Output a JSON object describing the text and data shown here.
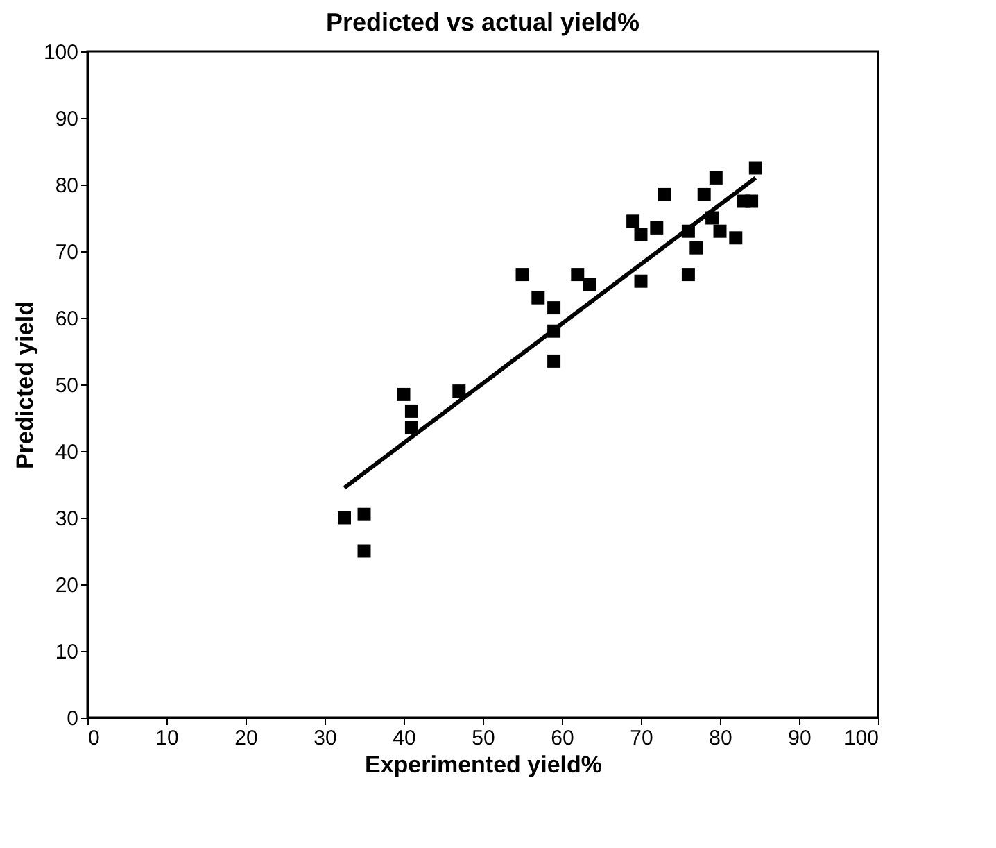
{
  "chart_data": {
    "type": "scatter",
    "title": "Predicted vs actual yield%",
    "xlabel": "Experimented yield%",
    "ylabel": "Predicted yield",
    "xlim": [
      0,
      100
    ],
    "ylim": [
      0,
      100
    ],
    "xticks": [
      0,
      10,
      20,
      30,
      40,
      50,
      60,
      70,
      80,
      90,
      100
    ],
    "yticks": [
      0,
      10,
      20,
      30,
      40,
      50,
      60,
      70,
      80,
      90,
      100
    ],
    "grid": false,
    "series": [
      {
        "marker": "square",
        "color": "#000000",
        "x": [
          32.5,
          35,
          35,
          40,
          41,
          41,
          47,
          55,
          57,
          59,
          59,
          59,
          62,
          63.5,
          69,
          70,
          70,
          72,
          73,
          76,
          76,
          77,
          78,
          79,
          79.5,
          80,
          82,
          83,
          84,
          84.5
        ],
        "values": [
          30,
          30.5,
          25,
          48.5,
          46,
          43.5,
          49,
          66.5,
          63,
          61.5,
          58,
          53.5,
          66.5,
          65,
          74.5,
          72.5,
          65.5,
          73.5,
          78.5,
          73,
          66.5,
          70.5,
          78.5,
          75,
          81,
          73,
          72,
          77.5,
          77.5,
          82.5
        ]
      },
      {
        "type": "line",
        "color": "#000000",
        "line_style": "solid",
        "x": [
          32.5,
          84.5
        ],
        "values": [
          34.5,
          81
        ]
      }
    ]
  }
}
